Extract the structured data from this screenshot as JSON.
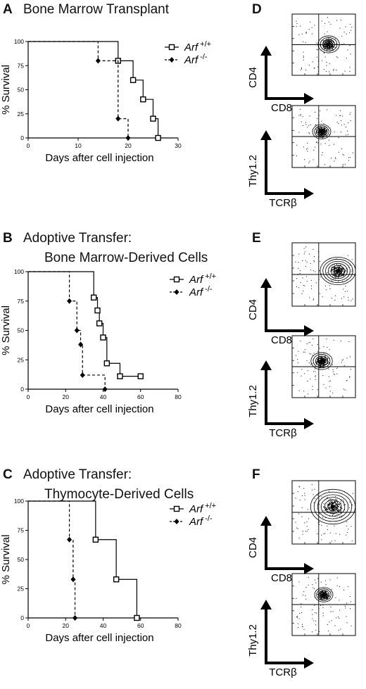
{
  "panels": {
    "A": {
      "letter": "A",
      "title_lines": [
        "Bone Marrow Transplant"
      ]
    },
    "B": {
      "letter": "B",
      "title_lines": [
        "Adoptive Transfer:",
        "Bone Marrow-Derived Cells"
      ]
    },
    "C": {
      "letter": "C",
      "title_lines": [
        "Adoptive Transfer:",
        "Thymocyte-Derived Cells"
      ]
    },
    "D": {
      "letter": "D"
    },
    "E": {
      "letter": "E"
    },
    "F": {
      "letter": "F"
    }
  },
  "flow_panels": [
    {
      "id": "D",
      "top_y": "CD4",
      "top_x": "CD8",
      "bottom_y": "Thy1.2",
      "bottom_x": "TCRβ"
    },
    {
      "id": "E",
      "top_y": "CD4",
      "top_x": "CD8",
      "bottom_y": "Thy1.2",
      "bottom_x": "TCRβ"
    },
    {
      "id": "F",
      "top_y": "CD4",
      "top_x": "CD8",
      "bottom_y": "Thy1.2",
      "bottom_x": "TCRβ"
    }
  ],
  "chart_data": [
    {
      "id": "A",
      "type": "line",
      "title": "Bone Marrow Transplant",
      "xlabel": "Days after cell injection",
      "ylabel": "% Survival",
      "xlim": [
        0,
        30
      ],
      "ylim": [
        0,
        100
      ],
      "xticks": [
        0,
        10,
        20,
        30
      ],
      "yticks": [
        0,
        25,
        50,
        75,
        100
      ],
      "legend": "top-right",
      "series": [
        {
          "name": "Arf",
          "sup": "+/+",
          "marker": "square",
          "style": "solid",
          "steps": [
            [
              0,
              100
            ],
            [
              18,
              80
            ],
            [
              21,
              60
            ],
            [
              23,
              40
            ],
            [
              25,
              20
            ],
            [
              26,
              0
            ]
          ]
        },
        {
          "name": "Arf",
          "sup": "-/-",
          "marker": "diamond",
          "style": "dashed",
          "steps": [
            [
              0,
              100
            ],
            [
              14,
              80
            ],
            [
              18,
              20
            ],
            [
              20,
              0
            ]
          ]
        }
      ]
    },
    {
      "id": "B",
      "type": "line",
      "title": "Adoptive Transfer: Bone Marrow-Derived Cells",
      "xlabel": "Days after cell injection",
      "ylabel": "% Survival",
      "xlim": [
        0,
        80
      ],
      "ylim": [
        0,
        100
      ],
      "xticks": [
        0,
        20,
        40,
        60,
        80
      ],
      "yticks": [
        0,
        25,
        50,
        75,
        100
      ],
      "legend": "top-right",
      "series": [
        {
          "name": "Arf",
          "sup": "+/+",
          "marker": "square",
          "style": "solid",
          "steps": [
            [
              0,
              100
            ],
            [
              35,
              78
            ],
            [
              37,
              67
            ],
            [
              38,
              56
            ],
            [
              40,
              44
            ],
            [
              42,
              22
            ],
            [
              49,
              11
            ],
            [
              60,
              11
            ]
          ]
        },
        {
          "name": "Arf",
          "sup": "-/-",
          "marker": "diamond",
          "style": "dashed",
          "steps": [
            [
              0,
              100
            ],
            [
              22,
              75
            ],
            [
              26,
              50
            ],
            [
              28,
              38
            ],
            [
              29,
              12
            ],
            [
              41,
              0
            ]
          ]
        }
      ]
    },
    {
      "id": "C",
      "type": "line",
      "title": "Adoptive Transfer: Thymocyte-Derived Cells",
      "xlabel": "Days after cell injection",
      "ylabel": "% Survival",
      "xlim": [
        0,
        80
      ],
      "ylim": [
        0,
        100
      ],
      "xticks": [
        0,
        20,
        40,
        60,
        80
      ],
      "yticks": [
        0,
        25,
        50,
        75,
        100
      ],
      "legend": "top-right",
      "series": [
        {
          "name": "Arf",
          "sup": "+/+",
          "marker": "square",
          "style": "solid",
          "steps": [
            [
              0,
              100
            ],
            [
              36,
              67
            ],
            [
              47,
              33
            ],
            [
              58,
              0
            ]
          ]
        },
        {
          "name": "Arf",
          "sup": "-/-",
          "marker": "diamond",
          "style": "dashed",
          "steps": [
            [
              0,
              100
            ],
            [
              22,
              67
            ],
            [
              24,
              33
            ],
            [
              25,
              0
            ]
          ]
        }
      ]
    }
  ]
}
